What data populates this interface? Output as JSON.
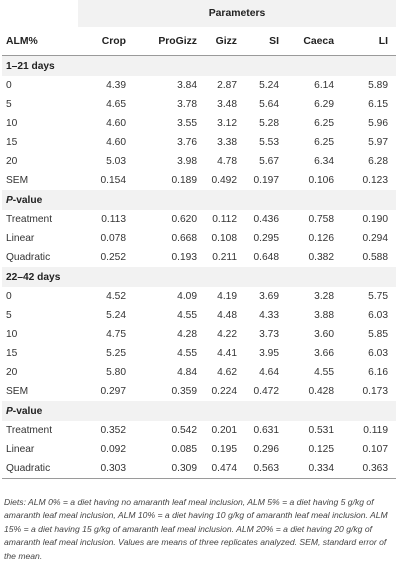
{
  "header": {
    "group_label": "Parameters",
    "columns": [
      "ALM%",
      "Crop",
      "ProGizz",
      "Gizz",
      "SI",
      "Caeca",
      "LI"
    ]
  },
  "sections": [
    {
      "title": "1–21 days",
      "rows": [
        {
          "label": "0",
          "values": [
            "4.39",
            "3.84",
            "2.87",
            "5.24",
            "6.14",
            "5.89"
          ]
        },
        {
          "label": "5",
          "values": [
            "4.65",
            "3.78",
            "3.48",
            "5.64",
            "6.29",
            "6.15"
          ]
        },
        {
          "label": "10",
          "values": [
            "4.60",
            "3.55",
            "3.12",
            "5.28",
            "6.25",
            "5.96"
          ]
        },
        {
          "label": "15",
          "values": [
            "4.60",
            "3.76",
            "3.38",
            "5.53",
            "6.25",
            "5.97"
          ]
        },
        {
          "label": "20",
          "values": [
            "5.03",
            "3.98",
            "4.78",
            "5.67",
            "6.34",
            "6.28"
          ]
        },
        {
          "label": "SEM",
          "values": [
            "0.154",
            "0.189",
            "0.492",
            "0.197",
            "0.106",
            "0.123"
          ]
        }
      ]
    },
    {
      "title_prefix": "P",
      "title_suffix": "-value",
      "rows": [
        {
          "label": "Treatment",
          "values": [
            "0.113",
            "0.620",
            "0.112",
            "0.436",
            "0.758",
            "0.190"
          ]
        },
        {
          "label": "Linear",
          "values": [
            "0.078",
            "0.668",
            "0.108",
            "0.295",
            "0.126",
            "0.294"
          ]
        },
        {
          "label": "Quadratic",
          "values": [
            "0.252",
            "0.193",
            "0.211",
            "0.648",
            "0.382",
            "0.588"
          ]
        }
      ]
    },
    {
      "title": "22–42 days",
      "rows": [
        {
          "label": "0",
          "values": [
            "4.52",
            "4.09",
            "4.19",
            "3.69",
            "3.28",
            "5.75"
          ]
        },
        {
          "label": "5",
          "values": [
            "5.24",
            "4.55",
            "4.48",
            "4.33",
            "3.88",
            "6.03"
          ]
        },
        {
          "label": "10",
          "values": [
            "4.75",
            "4.28",
            "4.22",
            "3.73",
            "3.60",
            "5.85"
          ]
        },
        {
          "label": "15",
          "values": [
            "5.25",
            "4.55",
            "4.41",
            "3.95",
            "3.66",
            "6.03"
          ]
        },
        {
          "label": "20",
          "values": [
            "5.80",
            "4.84",
            "4.62",
            "4.64",
            "4.55",
            "6.16"
          ]
        },
        {
          "label": "SEM",
          "values": [
            "0.297",
            "0.359",
            "0.224",
            "0.472",
            "0.428",
            "0.173"
          ]
        }
      ]
    },
    {
      "title_prefix": "P",
      "title_suffix": "-value",
      "rows": [
        {
          "label": "Treatment",
          "values": [
            "0.352",
            "0.542",
            "0.201",
            "0.631",
            "0.531",
            "0.119"
          ]
        },
        {
          "label": "Linear",
          "values": [
            "0.092",
            "0.085",
            "0.195",
            "0.296",
            "0.125",
            "0.107"
          ]
        },
        {
          "label": "Quadratic",
          "values": [
            "0.303",
            "0.309",
            "0.474",
            "0.563",
            "0.334",
            "0.363"
          ]
        }
      ]
    }
  ],
  "footnote": "Diets: ALM 0% = a diet having no amaranth leaf meal inclusion, ALM 5% = a diet having 5 g/kg of amaranth leaf meal inclusion, ALM 10% = a diet having 10 g/kg of amaranth leaf meal inclusion. ALM 15% = a diet having 15 g/kg of amaranth leaf meal inclusion. ALM 20% = a diet having 20 g/kg of amaranth leaf meal inclusion. Values are means of three replicates analyzed. SEM, standard error of the mean."
}
